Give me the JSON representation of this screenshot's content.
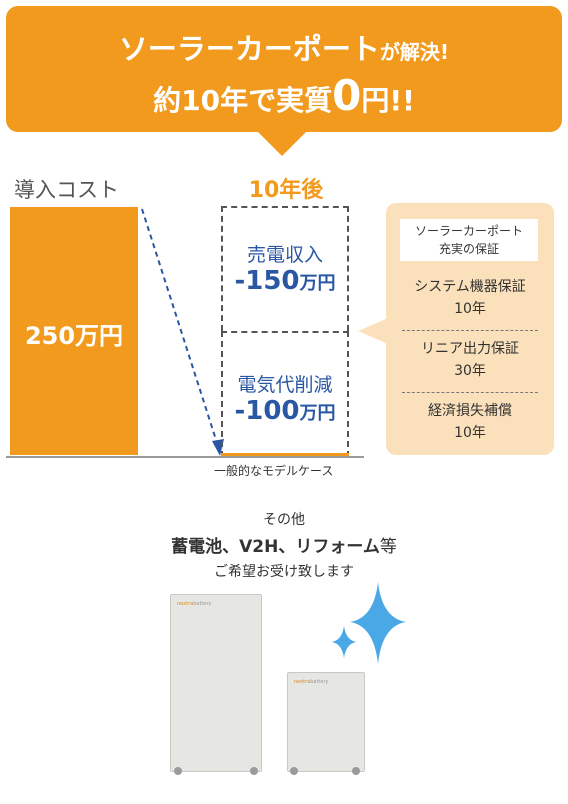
{
  "banner": {
    "line1_main": "ソーラーカーポート",
    "line1_suffix": "が解決!",
    "line2_prefix": "約10年で実質",
    "line2_big": "0",
    "line2_suffix": "円!!"
  },
  "cost": {
    "label": "導入コスト",
    "value": "250万円"
  },
  "after": {
    "label": "10年後",
    "sale_title": "売電収入",
    "sale_value": "-150",
    "sale_unit": "万円",
    "elec_title": "電気代削減",
    "elec_value": "-100",
    "elec_unit": "万円",
    "note": "一般的なモデルケース"
  },
  "warranty": {
    "header_line1": "ソーラーカーポート",
    "header_line2": "充実の保証",
    "items": [
      {
        "name": "システム機器保証",
        "term": "10年"
      },
      {
        "name": "リニア出力保証",
        "term": "30年"
      },
      {
        "name": "経済損失補償",
        "term": "10年"
      }
    ]
  },
  "other": {
    "line1": "その他",
    "line2_main": "蓄電池、V2H、リフォーム",
    "line2_suffix": "等",
    "line3": "ご希望お受け致します"
  },
  "battery": {
    "logo_brand": "nextra",
    "logo_suffix": "battery"
  },
  "colors": {
    "accent": "#f29a1d",
    "blue_text": "#2a57a3",
    "callout_bg": "#fbe1bb",
    "sparkle": "#4aa8e6"
  }
}
